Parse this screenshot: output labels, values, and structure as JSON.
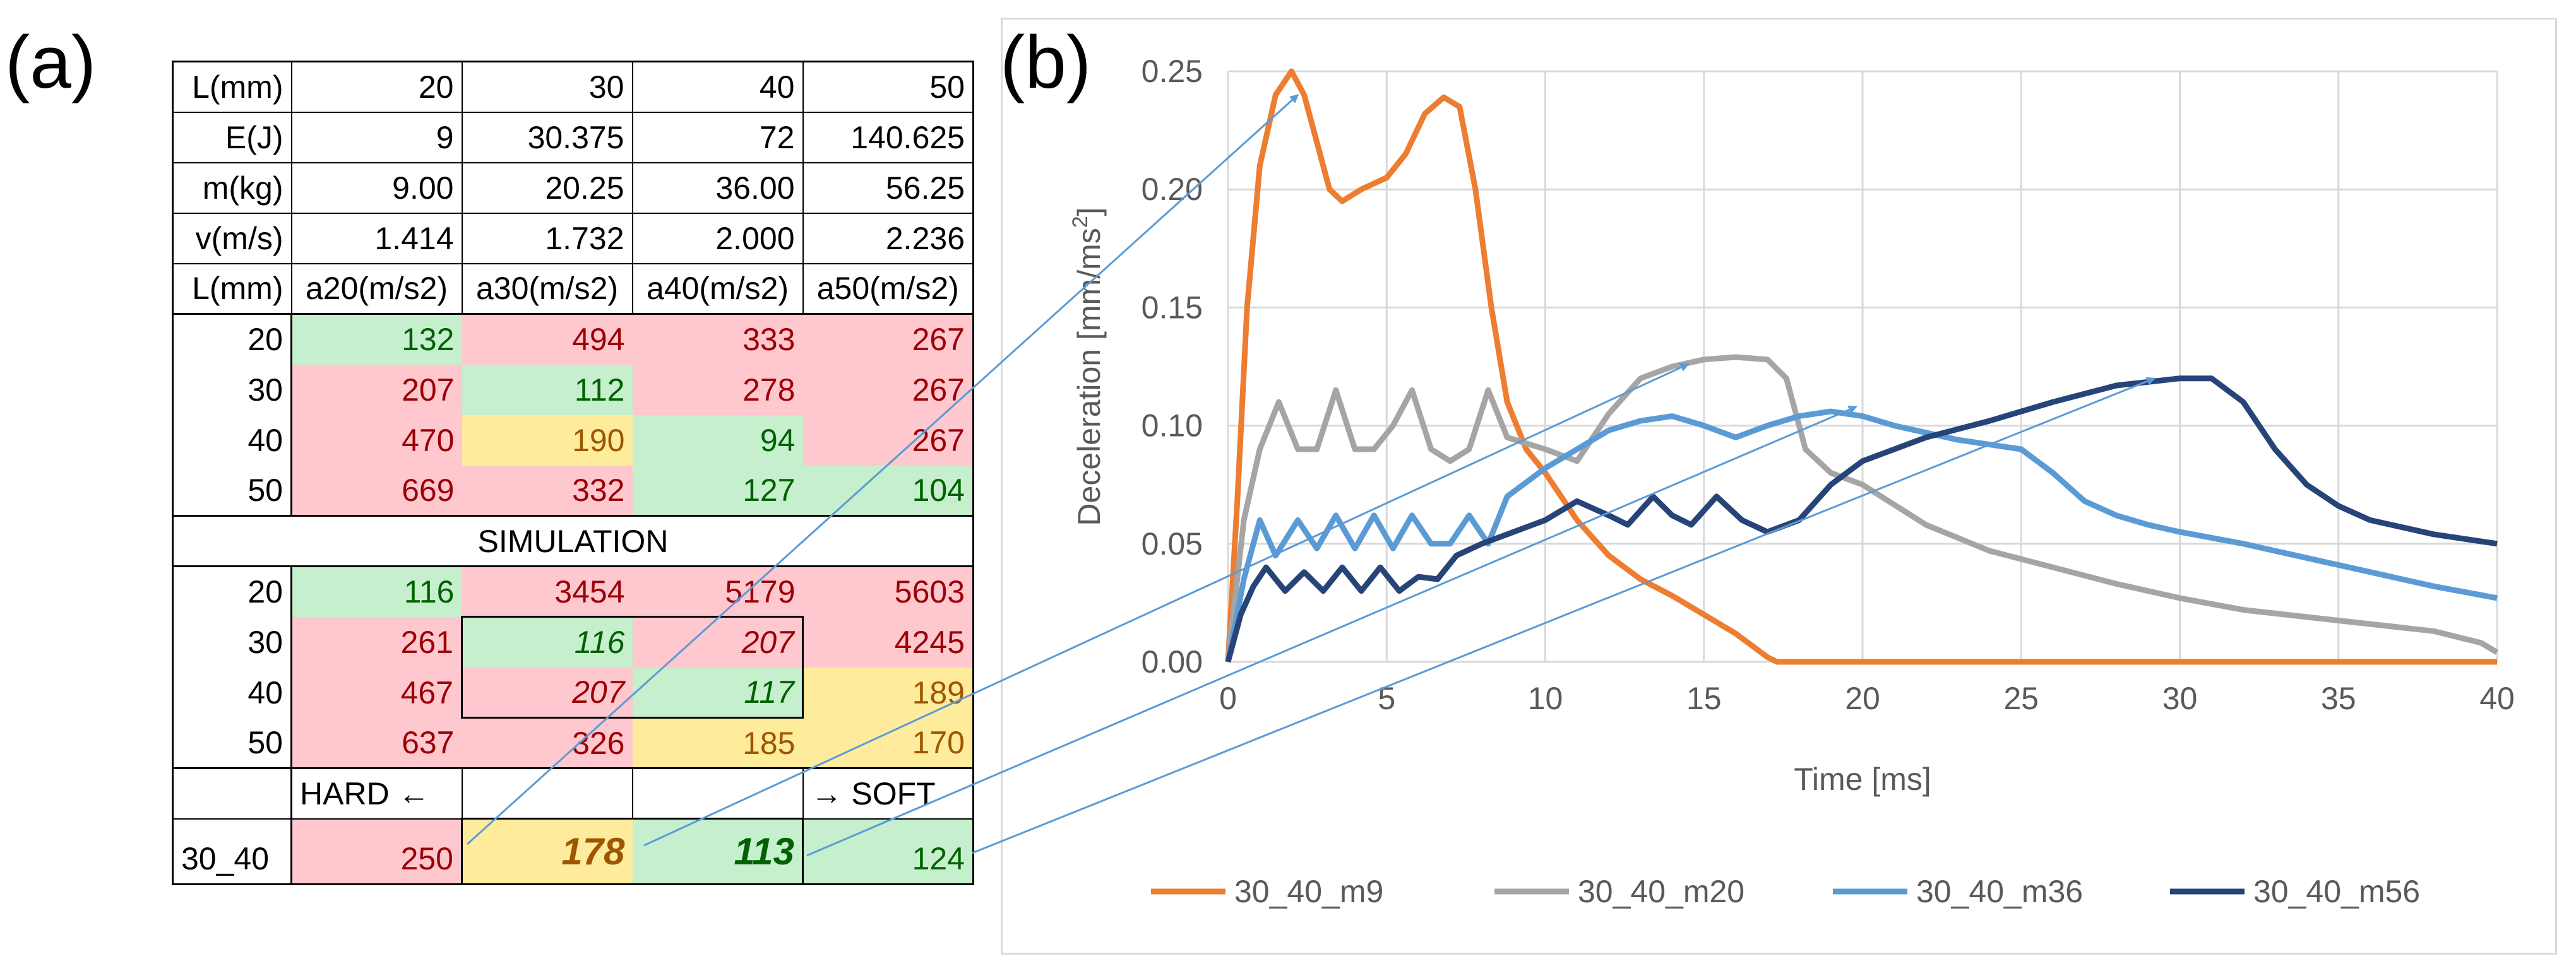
{
  "panels": {
    "a": "(a)",
    "b": "(b)"
  },
  "table": {
    "header_rows": [
      {
        "label": "L(mm)",
        "cells": [
          "20",
          "30",
          "40",
          "50"
        ]
      },
      {
        "label": "E(J)",
        "cells": [
          "9",
          "30.375",
          "72",
          "140.625"
        ]
      },
      {
        "label": "m(kg)",
        "cells": [
          "9.00",
          "20.25",
          "36.00",
          "56.25"
        ]
      },
      {
        "label": "v(m/s)",
        "cells": [
          "1.414",
          "1.732",
          "2.000",
          "2.236"
        ]
      },
      {
        "label": "L(mm)",
        "cells": [
          "a20(m/s2)",
          "a30(m/s2)",
          "a40(m/s2)",
          "a50(m/s2)"
        ]
      }
    ],
    "analytic_rows": [
      {
        "label": "20",
        "cells": [
          "132",
          "494",
          "333",
          "267"
        ]
      },
      {
        "label": "30",
        "cells": [
          "207",
          "112",
          "278",
          "267"
        ]
      },
      {
        "label": "40",
        "cells": [
          "470",
          "190",
          "94",
          "267"
        ]
      },
      {
        "label": "50",
        "cells": [
          "669",
          "332",
          "127",
          "104"
        ]
      }
    ],
    "simulation_title": "SIMULATION",
    "simulation_rows": [
      {
        "label": "20",
        "cells": [
          "116",
          "3454",
          "5179",
          "5603"
        ]
      },
      {
        "label": "30",
        "cells": [
          "261",
          "116",
          "207",
          "4245"
        ]
      },
      {
        "label": "40",
        "cells": [
          "467",
          "207",
          "117",
          "189"
        ]
      },
      {
        "label": "50",
        "cells": [
          "637",
          "326",
          "185",
          "170"
        ]
      }
    ],
    "hard_label": "HARD ←",
    "soft_label": "→ SOFT",
    "result_row": {
      "label": "30_40",
      "cells": [
        "250",
        "178",
        "113",
        "124"
      ]
    }
  },
  "colors": {
    "green_bg": "#c6efce",
    "green_text": "#006100",
    "red_bg": "#ffc7ce",
    "red_text": "#9c0006",
    "yellow_bg": "#ffeb9c",
    "yellow_text": "#9c5700",
    "arrow": "#5b9bd5"
  },
  "chart_data": {
    "type": "line",
    "title": "",
    "xlabel": "Time [ms]",
    "ylabel": "Deceleration [mm/ms²]",
    "xlim": [
      0,
      40
    ],
    "ylim": [
      0,
      0.25
    ],
    "xticks": [
      "0",
      "5",
      "10",
      "15",
      "20",
      "25",
      "30",
      "35",
      "40"
    ],
    "yticks": [
      "0.00",
      "0.05",
      "0.10",
      "0.15",
      "0.20",
      "0.25"
    ],
    "grid": true,
    "legend": "bottom",
    "series": [
      {
        "name": "30_40_m9",
        "color": "#ed7d31",
        "points": [
          [
            0,
            0
          ],
          [
            0.3,
            0.07
          ],
          [
            0.6,
            0.15
          ],
          [
            1.0,
            0.21
          ],
          [
            1.5,
            0.24
          ],
          [
            2.0,
            0.25
          ],
          [
            2.4,
            0.24
          ],
          [
            2.8,
            0.22
          ],
          [
            3.2,
            0.2
          ],
          [
            3.6,
            0.195
          ],
          [
            4.2,
            0.2
          ],
          [
            5.0,
            0.205
          ],
          [
            5.6,
            0.215
          ],
          [
            6.2,
            0.232
          ],
          [
            6.8,
            0.239
          ],
          [
            7.3,
            0.235
          ],
          [
            7.8,
            0.2
          ],
          [
            8.3,
            0.15
          ],
          [
            8.8,
            0.11
          ],
          [
            9.4,
            0.09
          ],
          [
            10,
            0.08
          ],
          [
            11,
            0.06
          ],
          [
            12,
            0.045
          ],
          [
            13,
            0.035
          ],
          [
            14,
            0.028
          ],
          [
            15,
            0.02
          ],
          [
            16,
            0.012
          ],
          [
            17,
            0.002
          ],
          [
            17.3,
            0.0
          ],
          [
            25,
            0.0
          ],
          [
            40,
            0.0
          ]
        ]
      },
      {
        "name": "30_40_m20",
        "color": "#a5a5a5",
        "points": [
          [
            0,
            0
          ],
          [
            0.5,
            0.06
          ],
          [
            1.0,
            0.09
          ],
          [
            1.6,
            0.11
          ],
          [
            2.2,
            0.09
          ],
          [
            2.8,
            0.09
          ],
          [
            3.4,
            0.115
          ],
          [
            4.0,
            0.09
          ],
          [
            4.6,
            0.09
          ],
          [
            5.2,
            0.1
          ],
          [
            5.8,
            0.115
          ],
          [
            6.4,
            0.09
          ],
          [
            7.0,
            0.085
          ],
          [
            7.6,
            0.09
          ],
          [
            8.2,
            0.115
          ],
          [
            8.8,
            0.095
          ],
          [
            10,
            0.09
          ],
          [
            11,
            0.085
          ],
          [
            12,
            0.105
          ],
          [
            13,
            0.12
          ],
          [
            14,
            0.125
          ],
          [
            15,
            0.128
          ],
          [
            16,
            0.129
          ],
          [
            17,
            0.128
          ],
          [
            17.6,
            0.12
          ],
          [
            18.2,
            0.09
          ],
          [
            19,
            0.08
          ],
          [
            20,
            0.075
          ],
          [
            22,
            0.058
          ],
          [
            24,
            0.047
          ],
          [
            26,
            0.04
          ],
          [
            28,
            0.033
          ],
          [
            30,
            0.027
          ],
          [
            32,
            0.022
          ],
          [
            34,
            0.019
          ],
          [
            36,
            0.016
          ],
          [
            38,
            0.013
          ],
          [
            39.5,
            0.008
          ],
          [
            40,
            0.004
          ]
        ]
      },
      {
        "name": "30_40_m36",
        "color": "#5b9bd5",
        "points": [
          [
            0,
            0
          ],
          [
            0.5,
            0.035
          ],
          [
            1.0,
            0.06
          ],
          [
            1.5,
            0.045
          ],
          [
            2.2,
            0.06
          ],
          [
            2.8,
            0.048
          ],
          [
            3.4,
            0.062
          ],
          [
            4.0,
            0.048
          ],
          [
            4.6,
            0.062
          ],
          [
            5.2,
            0.048
          ],
          [
            5.8,
            0.062
          ],
          [
            6.4,
            0.05
          ],
          [
            7.0,
            0.05
          ],
          [
            7.6,
            0.062
          ],
          [
            8.2,
            0.05
          ],
          [
            8.8,
            0.07
          ],
          [
            10,
            0.082
          ],
          [
            11,
            0.09
          ],
          [
            12,
            0.098
          ],
          [
            13,
            0.102
          ],
          [
            14,
            0.104
          ],
          [
            15,
            0.1
          ],
          [
            16,
            0.095
          ],
          [
            17,
            0.1
          ],
          [
            18,
            0.104
          ],
          [
            19,
            0.106
          ],
          [
            20,
            0.104
          ],
          [
            21,
            0.1
          ],
          [
            22,
            0.097
          ],
          [
            23,
            0.094
          ],
          [
            24,
            0.092
          ],
          [
            25,
            0.09
          ],
          [
            26,
            0.08
          ],
          [
            27,
            0.068
          ],
          [
            28,
            0.062
          ],
          [
            29,
            0.058
          ],
          [
            30,
            0.055
          ],
          [
            32,
            0.05
          ],
          [
            34,
            0.044
          ],
          [
            36,
            0.038
          ],
          [
            38,
            0.032
          ],
          [
            40,
            0.027
          ]
        ]
      },
      {
        "name": "30_40_m56",
        "color": "#264478",
        "points": [
          [
            0,
            0
          ],
          [
            0.4,
            0.02
          ],
          [
            0.8,
            0.032
          ],
          [
            1.2,
            0.04
          ],
          [
            1.8,
            0.03
          ],
          [
            2.4,
            0.038
          ],
          [
            3.0,
            0.03
          ],
          [
            3.6,
            0.04
          ],
          [
            4.2,
            0.03
          ],
          [
            4.8,
            0.04
          ],
          [
            5.4,
            0.03
          ],
          [
            6.0,
            0.036
          ],
          [
            6.6,
            0.035
          ],
          [
            7.2,
            0.045
          ],
          [
            8,
            0.05
          ],
          [
            9,
            0.055
          ],
          [
            10,
            0.06
          ],
          [
            11,
            0.068
          ],
          [
            12,
            0.062
          ],
          [
            12.6,
            0.058
          ],
          [
            13.4,
            0.07
          ],
          [
            14,
            0.062
          ],
          [
            14.6,
            0.058
          ],
          [
            15.4,
            0.07
          ],
          [
            16.2,
            0.06
          ],
          [
            17,
            0.055
          ],
          [
            18,
            0.06
          ],
          [
            19,
            0.075
          ],
          [
            20,
            0.085
          ],
          [
            22,
            0.095
          ],
          [
            24,
            0.102
          ],
          [
            26,
            0.11
          ],
          [
            28,
            0.117
          ],
          [
            30,
            0.12
          ],
          [
            31,
            0.12
          ],
          [
            32,
            0.11
          ],
          [
            33,
            0.09
          ],
          [
            34,
            0.075
          ],
          [
            35,
            0.066
          ],
          [
            36,
            0.06
          ],
          [
            38,
            0.054
          ],
          [
            40,
            0.05
          ]
        ]
      }
    ]
  }
}
